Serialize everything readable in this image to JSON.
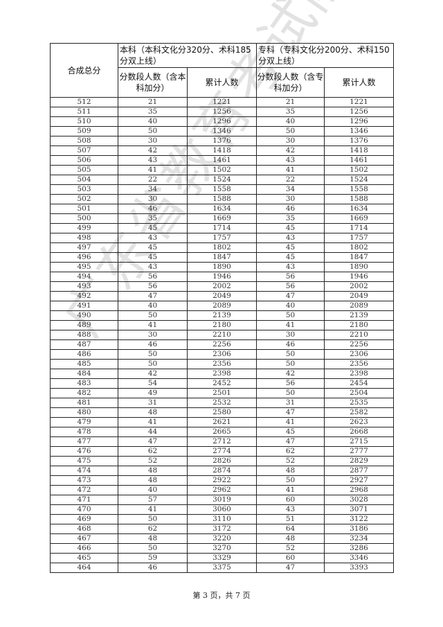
{
  "header": {
    "score_col": "合成总分",
    "benke_group": "本科（本科文化分320分、术科185分双上线）",
    "zhuanke_group": "专科（专科文化分200分、术科150分双上线）",
    "benke_count": "分数段人数（含本科加分）",
    "benke_cum": "累计人数",
    "zhuanke_count": "分数段人数（含专科加分）",
    "zhuanke_cum": "累计人数"
  },
  "rows": [
    [
      "512",
      "21",
      "1221",
      "21",
      "1221"
    ],
    [
      "511",
      "35",
      "1256",
      "35",
      "1256"
    ],
    [
      "510",
      "40",
      "1296",
      "40",
      "1296"
    ],
    [
      "509",
      "50",
      "1346",
      "50",
      "1346"
    ],
    [
      "508",
      "30",
      "1376",
      "30",
      "1376"
    ],
    [
      "507",
      "42",
      "1418",
      "42",
      "1418"
    ],
    [
      "506",
      "43",
      "1461",
      "43",
      "1461"
    ],
    [
      "505",
      "41",
      "1502",
      "41",
      "1502"
    ],
    [
      "504",
      "22",
      "1524",
      "22",
      "1524"
    ],
    [
      "503",
      "34",
      "1558",
      "34",
      "1558"
    ],
    [
      "502",
      "30",
      "1588",
      "30",
      "1588"
    ],
    [
      "501",
      "46",
      "1634",
      "46",
      "1634"
    ],
    [
      "500",
      "35",
      "1669",
      "35",
      "1669"
    ],
    [
      "499",
      "45",
      "1714",
      "45",
      "1714"
    ],
    [
      "498",
      "43",
      "1757",
      "43",
      "1757"
    ],
    [
      "497",
      "45",
      "1802",
      "45",
      "1802"
    ],
    [
      "496",
      "45",
      "1847",
      "45",
      "1847"
    ],
    [
      "495",
      "43",
      "1890",
      "43",
      "1890"
    ],
    [
      "494",
      "56",
      "1946",
      "56",
      "1946"
    ],
    [
      "493",
      "56",
      "2002",
      "56",
      "2002"
    ],
    [
      "492",
      "47",
      "2049",
      "47",
      "2049"
    ],
    [
      "491",
      "40",
      "2089",
      "40",
      "2089"
    ],
    [
      "490",
      "50",
      "2139",
      "50",
      "2139"
    ],
    [
      "489",
      "41",
      "2180",
      "41",
      "2180"
    ],
    [
      "488",
      "30",
      "2210",
      "30",
      "2210"
    ],
    [
      "487",
      "46",
      "2256",
      "46",
      "2256"
    ],
    [
      "486",
      "50",
      "2306",
      "50",
      "2306"
    ],
    [
      "485",
      "50",
      "2356",
      "50",
      "2356"
    ],
    [
      "484",
      "42",
      "2398",
      "42",
      "2398"
    ],
    [
      "483",
      "54",
      "2452",
      "56",
      "2454"
    ],
    [
      "482",
      "49",
      "2501",
      "50",
      "2504"
    ],
    [
      "481",
      "31",
      "2532",
      "31",
      "2535"
    ],
    [
      "480",
      "48",
      "2580",
      "47",
      "2582"
    ],
    [
      "479",
      "41",
      "2621",
      "41",
      "2623"
    ],
    [
      "478",
      "44",
      "2665",
      "45",
      "2668"
    ],
    [
      "477",
      "47",
      "2712",
      "47",
      "2715"
    ],
    [
      "476",
      "62",
      "2774",
      "62",
      "2777"
    ],
    [
      "475",
      "52",
      "2826",
      "52",
      "2829"
    ],
    [
      "474",
      "48",
      "2874",
      "48",
      "2877"
    ],
    [
      "473",
      "48",
      "2922",
      "50",
      "2927"
    ],
    [
      "472",
      "40",
      "2962",
      "41",
      "2968"
    ],
    [
      "471",
      "57",
      "3019",
      "60",
      "3028"
    ],
    [
      "470",
      "41",
      "3060",
      "43",
      "3071"
    ],
    [
      "469",
      "50",
      "3110",
      "51",
      "3122"
    ],
    [
      "468",
      "62",
      "3172",
      "64",
      "3186"
    ],
    [
      "467",
      "48",
      "3220",
      "48",
      "3234"
    ],
    [
      "466",
      "50",
      "3270",
      "52",
      "3286"
    ],
    [
      "465",
      "59",
      "3329",
      "60",
      "3346"
    ],
    [
      "464",
      "46",
      "3375",
      "47",
      "3393"
    ]
  ],
  "watermark": "广东省教育考试院",
  "footer": "第 3 页，共 7 页"
}
